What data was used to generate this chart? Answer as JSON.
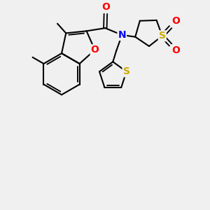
{
  "bg_color": "#f0f0f0",
  "line_color": "#000000",
  "line_width": 1.5,
  "atom_colors": {
    "O": "#ff0000",
    "N": "#0000ff",
    "S": "#ccaa00"
  },
  "font_size": 10
}
